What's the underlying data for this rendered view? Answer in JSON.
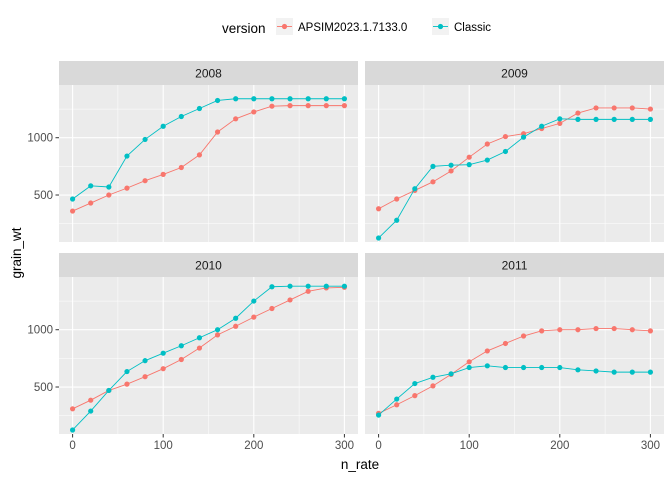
{
  "chart_data": {
    "type": "line",
    "facet_by": "year",
    "xlabel": "n_rate",
    "ylabel": "grain_wt",
    "x": [
      0,
      20,
      40,
      60,
      80,
      100,
      120,
      140,
      160,
      180,
      200,
      220,
      240,
      260,
      280,
      300
    ],
    "xlim": [
      -15,
      315
    ],
    "ylim": [
      90,
      1460
    ],
    "x_ticks": [
      0,
      100,
      200,
      300
    ],
    "y_ticks": [
      500,
      1000
    ],
    "grid": true,
    "legend": {
      "title": "version",
      "position": "top",
      "entries": [
        {
          "label": "APSIM2023.1.7133.0",
          "color": "#F8766D"
        },
        {
          "label": "Classic",
          "color": "#00BFC4"
        }
      ]
    },
    "panels": [
      {
        "label": "2008",
        "series": [
          {
            "name": "APSIM2023.1.7133.0",
            "color": "#F8766D",
            "values": [
              360,
              430,
              500,
              560,
              625,
              680,
              740,
              850,
              1050,
              1165,
              1225,
              1275,
              1280,
              1280,
              1280,
              1280
            ]
          },
          {
            "name": "Classic",
            "color": "#00BFC4",
            "values": [
              465,
              580,
              570,
              840,
              985,
              1100,
              1185,
              1255,
              1325,
              1340,
              1340,
              1340,
              1340,
              1340,
              1340,
              1340
            ]
          }
        ]
      },
      {
        "label": "2009",
        "series": [
          {
            "name": "APSIM2023.1.7133.0",
            "color": "#F8766D",
            "values": [
              380,
              465,
              540,
              615,
              710,
              830,
              945,
              1010,
              1035,
              1080,
              1125,
              1215,
              1260,
              1260,
              1260,
              1250
            ]
          },
          {
            "name": "Classic",
            "color": "#00BFC4",
            "values": [
              125,
              280,
              555,
              750,
              760,
              765,
              805,
              880,
              1005,
              1100,
              1165,
              1160,
              1160,
              1160,
              1160,
              1160
            ]
          }
        ]
      },
      {
        "label": "2010",
        "series": [
          {
            "name": "APSIM2023.1.7133.0",
            "color": "#F8766D",
            "values": [
              310,
              385,
              470,
              525,
              590,
              660,
              740,
              840,
              955,
              1030,
              1110,
              1185,
              1260,
              1335,
              1365,
              1370
            ]
          },
          {
            "name": "Classic",
            "color": "#00BFC4",
            "values": [
              125,
              290,
              470,
              635,
              730,
              795,
              860,
              930,
              1000,
              1100,
              1250,
              1375,
              1380,
              1380,
              1380,
              1380
            ]
          }
        ]
      },
      {
        "label": "2011",
        "series": [
          {
            "name": "APSIM2023.1.7133.0",
            "color": "#F8766D",
            "values": [
              270,
              345,
              425,
              510,
              610,
              720,
              815,
              880,
              945,
              990,
              1000,
              1000,
              1010,
              1010,
              1000,
              990
            ]
          },
          {
            "name": "Classic",
            "color": "#00BFC4",
            "values": [
              255,
              395,
              530,
              585,
              615,
              670,
              685,
              670,
              670,
              670,
              670,
              650,
              640,
              630,
              630,
              630
            ]
          }
        ]
      }
    ]
  }
}
